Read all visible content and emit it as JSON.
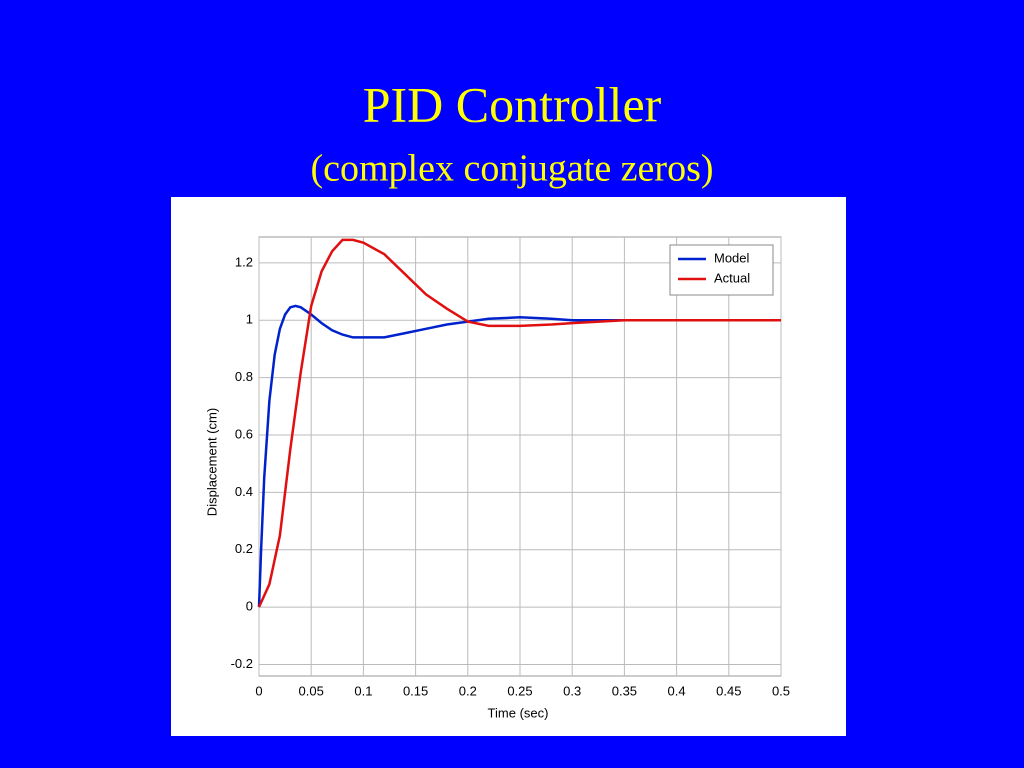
{
  "chart_data": {
    "type": "line",
    "title": "PID Controller",
    "subtitle": "(complex conjugate zeros)",
    "x_label": "Time (sec)",
    "y_label": "Displacement (cm)",
    "xlim": [
      0,
      0.5
    ],
    "xticks": [
      0,
      0.05,
      0.1,
      0.15,
      0.2,
      0.25,
      0.3,
      0.35,
      0.4,
      0.45,
      0.5
    ],
    "ylim": [
      -0.24,
      1.29
    ],
    "yticks": [
      -0.2,
      0,
      0.2,
      0.4,
      0.6,
      0.8,
      1,
      1.2
    ],
    "grid": true,
    "legend": "upper-right",
    "series": [
      {
        "name": "Model",
        "color": "#0022cc",
        "x": [
          0,
          0.002,
          0.005,
          0.01,
          0.015,
          0.02,
          0.025,
          0.03,
          0.035,
          0.04,
          0.05,
          0.06,
          0.07,
          0.08,
          0.09,
          0.1,
          0.12,
          0.14,
          0.16,
          0.18,
          0.2,
          0.22,
          0.25,
          0.28,
          0.3,
          0.35,
          0.4,
          0.5
        ],
        "values": [
          0,
          0.2,
          0.45,
          0.72,
          0.88,
          0.97,
          1.02,
          1.045,
          1.05,
          1.045,
          1.02,
          0.99,
          0.965,
          0.95,
          0.94,
          0.94,
          0.94,
          0.955,
          0.97,
          0.985,
          0.995,
          1.005,
          1.01,
          1.005,
          1.0,
          1.0,
          1.0,
          1.0
        ]
      },
      {
        "name": "Actual",
        "color": "#e01010",
        "x": [
          0,
          0.01,
          0.02,
          0.03,
          0.04,
          0.05,
          0.06,
          0.07,
          0.08,
          0.09,
          0.1,
          0.12,
          0.14,
          0.16,
          0.18,
          0.2,
          0.22,
          0.25,
          0.28,
          0.3,
          0.35,
          0.4,
          0.5
        ],
        "values": [
          0,
          0.08,
          0.25,
          0.55,
          0.82,
          1.05,
          1.17,
          1.24,
          1.28,
          1.28,
          1.27,
          1.23,
          1.16,
          1.09,
          1.04,
          0.995,
          0.98,
          0.98,
          0.985,
          0.99,
          1.0,
          1.0,
          1.0
        ]
      }
    ]
  }
}
